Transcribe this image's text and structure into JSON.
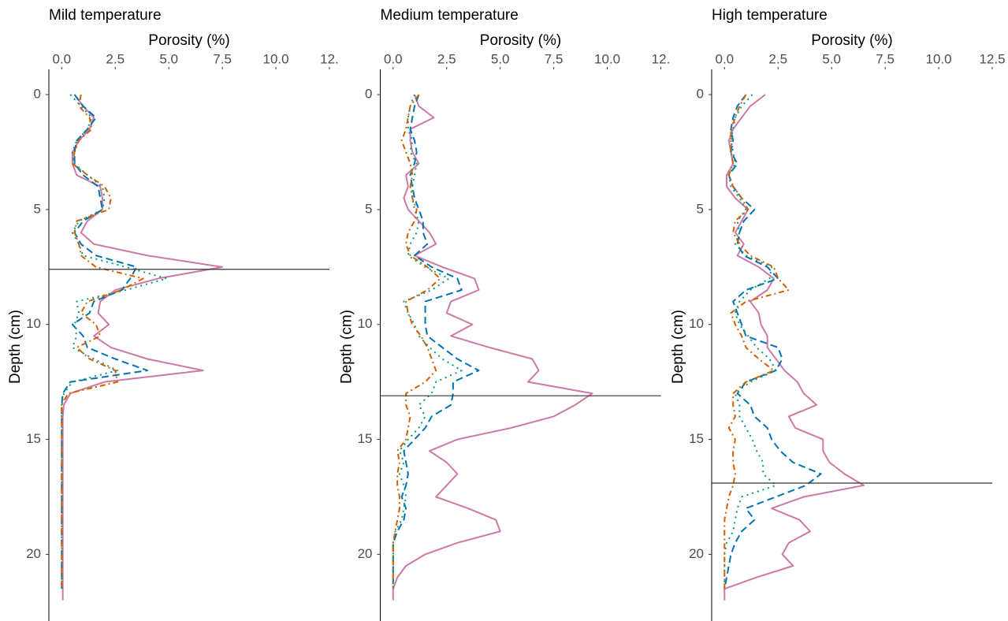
{
  "chart_data": [
    {
      "type": "line",
      "title": "Mild temperature",
      "xlabel": "Porosity (%)",
      "ylabel": "Depth (cm)",
      "x_axis_position": "top",
      "y_inverted": true,
      "xlim": [
        -0.6,
        12.5
      ],
      "xticks": [
        {
          "value": 0,
          "label": "0.0"
        },
        2.5,
        {
          "value": 5,
          "label": "5.0"
        },
        7.5,
        {
          "value": 10,
          "label": "10.0"
        },
        {
          "value": 12.5,
          "label": "12."
        }
      ],
      "ylim": [
        -1.1,
        22.9
      ],
      "yticks": [
        0,
        5,
        10,
        15,
        20
      ],
      "hline": 7.6,
      "depth": [
        0,
        0.5,
        1,
        1.5,
        2,
        2.5,
        3,
        3.5,
        4,
        4.5,
        5,
        5.5,
        6,
        6.5,
        7,
        7.5,
        8,
        8.5,
        9,
        9.5,
        10,
        10.5,
        11,
        11.5,
        12,
        12.5,
        13,
        13.5,
        14,
        14.5,
        15,
        15.5,
        16,
        16.5,
        17,
        17.5,
        18,
        18.5,
        19,
        19.5,
        20,
        20.5,
        21,
        21.5,
        22
      ],
      "series": [
        {
          "color": "#cc79a7",
          "linestyle": "solid",
          "values": [
            0.6,
            1.0,
            1.5,
            1.3,
            0.8,
            0.5,
            0.5,
            0.7,
            1.8,
            1.9,
            1.9,
            1.2,
            0.9,
            1.5,
            4.0,
            7.5,
            4.5,
            2.5,
            1.8,
            1.7,
            2.2,
            1.5,
            2.3,
            4.0,
            6.6,
            2.0,
            0.4,
            0.1,
            0.05,
            0.05,
            0.05,
            0.05,
            0.05,
            0.05,
            0.05,
            0.05,
            0.05,
            0.05,
            0.05,
            0.05,
            0.05,
            0.05,
            0.05,
            0.05,
            0.05
          ]
        },
        {
          "color": "#0072b2",
          "linestyle": "dashed",
          "values": [
            0.6,
            1.0,
            1.6,
            1.2,
            0.7,
            0.6,
            0.6,
            1.0,
            1.7,
            1.8,
            1.9,
            1.0,
            0.6,
            0.9,
            1.6,
            3.5,
            3.2,
            2.8,
            1.5,
            1.3,
            0.5,
            1.0,
            1.2,
            2.5,
            4.0,
            0.4,
            0.05,
            0,
            0,
            0,
            0,
            0,
            0,
            0,
            0,
            0,
            0,
            0,
            0,
            0,
            0,
            0,
            0,
            0,
            null
          ]
        },
        {
          "color": "#009e73",
          "linestyle": "dotted",
          "values": [
            0.4,
            0.9,
            1.4,
            1.2,
            0.7,
            0.5,
            0.6,
            1.2,
            1.9,
            2.0,
            1.9,
            0.8,
            0.5,
            0.8,
            1.0,
            3.0,
            4.9,
            3.0,
            0.7,
            0.8,
            0.6,
            0.7,
            0.5,
            1.5,
            2.6,
            0.5,
            0.1,
            0,
            0,
            0,
            0,
            0,
            0,
            0,
            0,
            0,
            0,
            0,
            0,
            0,
            0,
            0,
            0,
            0,
            null
          ]
        },
        {
          "color": "#d55e00",
          "linestyle": "dashdot",
          "values": [
            0.9,
            0.8,
            1.3,
            1.4,
            0.8,
            0.6,
            0.5,
            1.2,
            2.0,
            2.3,
            2.2,
            0.7,
            0.6,
            0.8,
            0.9,
            1.6,
            3.8,
            2.8,
            1.2,
            0.9,
            1.6,
            1.8,
            0.7,
            1.3,
            2.5,
            2.6,
            0.3,
            0,
            0,
            0,
            0,
            0,
            0,
            0,
            0,
            0,
            0,
            0,
            0,
            0,
            0,
            0,
            0,
            0,
            null
          ]
        }
      ]
    },
    {
      "type": "line",
      "title": "Medium temperature",
      "xlabel": "Porosity (%)",
      "ylabel": "Depth (cm)",
      "x_axis_position": "top",
      "y_inverted": true,
      "xlim": [
        -0.6,
        12.5
      ],
      "xticks": [
        {
          "value": 0,
          "label": "0.0"
        },
        2.5,
        {
          "value": 5,
          "label": "5.0"
        },
        7.5,
        {
          "value": 10,
          "label": "10.0"
        },
        {
          "value": 12.5,
          "label": "12."
        }
      ],
      "ylim": [
        -1.1,
        22.9
      ],
      "yticks": [
        0,
        5,
        10,
        15,
        20
      ],
      "hline": 13.1,
      "depth": [
        0,
        0.5,
        1,
        1.5,
        2,
        2.5,
        3,
        3.5,
        4,
        4.5,
        5,
        5.5,
        6,
        6.5,
        7,
        7.5,
        8,
        8.5,
        9,
        9.5,
        10,
        10.5,
        11,
        11.5,
        12,
        12.5,
        13,
        13.5,
        14,
        14.5,
        15,
        15.5,
        16,
        16.5,
        17,
        17.5,
        18,
        18.5,
        19,
        19.5,
        20,
        20.5,
        21,
        21.5,
        22
      ],
      "series": [
        {
          "color": "#cc79a7",
          "linestyle": "solid",
          "values": [
            1.0,
            1.2,
            1.9,
            0.8,
            0.8,
            0.9,
            1.2,
            0.6,
            0.7,
            0.5,
            0.7,
            1.2,
            1.7,
            2.0,
            1.0,
            2.3,
            3.8,
            4.0,
            2.7,
            2.5,
            3.7,
            2.7,
            4.5,
            6.5,
            6.8,
            6.3,
            9.3,
            8.5,
            7.5,
            5.5,
            3.0,
            1.7,
            2.5,
            3.0,
            2.5,
            2.0,
            3.5,
            4.8,
            5.0,
            3.0,
            1.5,
            0.6,
            0.2,
            0.0,
            0.0
          ]
        },
        {
          "color": "#0072b2",
          "linestyle": "dashed",
          "values": [
            1.2,
            1.0,
            0.9,
            0.8,
            1.0,
            1.1,
            1.0,
            0.8,
            0.9,
            1.0,
            1.2,
            1.4,
            1.4,
            1.6,
            1.0,
            1.8,
            3.0,
            3.2,
            1.5,
            1.5,
            1.5,
            1.6,
            2.3,
            3.0,
            4.0,
            2.8,
            2.8,
            2.7,
            1.8,
            1.5,
            1.0,
            0.5,
            0.6,
            0.7,
            0.6,
            0.4,
            0.6,
            0.5,
            0.2,
            0,
            0,
            0,
            0,
            0,
            null
          ]
        },
        {
          "color": "#009e73",
          "linestyle": "dotted",
          "values": [
            1.0,
            0.8,
            0.7,
            0.7,
            0.9,
            0.8,
            1.1,
            1.0,
            0.9,
            0.9,
            1.0,
            1.2,
            1.1,
            0.8,
            0.7,
            1.5,
            2.6,
            1.8,
            0.5,
            0.7,
            1.0,
            1.2,
            1.7,
            2.3,
            3.2,
            2.0,
            1.8,
            1.2,
            1.5,
            1.2,
            0.7,
            0.3,
            0.5,
            0.3,
            0.5,
            0.6,
            0.5,
            0.4,
            0.1,
            0,
            0,
            0,
            0,
            0,
            null
          ]
        },
        {
          "color": "#d55e00",
          "linestyle": "dashdot",
          "values": [
            1.2,
            0.8,
            0.7,
            0.6,
            0.4,
            0.6,
            0.8,
            0.9,
            0.8,
            0.9,
            1.1,
            1.0,
            0.7,
            0.6,
            0.8,
            1.6,
            2.2,
            1.6,
            0.6,
            0.7,
            0.9,
            1.3,
            1.6,
            1.8,
            2.0,
            1.5,
            0.6,
            0.6,
            0.8,
            0.7,
            0.6,
            0.2,
            0.3,
            0.2,
            0.2,
            0.3,
            0.3,
            0.2,
            0.1,
            0,
            0,
            0,
            0,
            0,
            null
          ]
        }
      ]
    },
    {
      "type": "line",
      "title": "High temperature",
      "xlabel": "Porosity (%)",
      "ylabel": "Depth (cm)",
      "x_axis_position": "top",
      "y_inverted": true,
      "xlim": [
        -0.6,
        12.5
      ],
      "xticks": [
        {
          "value": 0,
          "label": "0.0"
        },
        2.5,
        {
          "value": 5,
          "label": "5.0"
        },
        7.5,
        {
          "value": 10,
          "label": "10.0"
        },
        12.5
      ],
      "ylim": [
        -1.1,
        22.9
      ],
      "yticks": [
        0,
        5,
        10,
        15,
        20
      ],
      "hline": 16.9,
      "depth": [
        0,
        0.5,
        1,
        1.5,
        2,
        2.5,
        3,
        3.5,
        4,
        4.5,
        5,
        5.5,
        6,
        6.5,
        7,
        7.5,
        8,
        8.5,
        9,
        9.5,
        10,
        10.5,
        11,
        11.5,
        12,
        12.5,
        13,
        13.5,
        14,
        14.5,
        15,
        15.5,
        16,
        16.5,
        17,
        17.5,
        18,
        18.5,
        19,
        19.5,
        20,
        20.5,
        21,
        21.5,
        22
      ],
      "series": [
        {
          "color": "#cc79a7",
          "linestyle": "solid",
          "values": [
            1.9,
            1.2,
            0.8,
            0.4,
            0.2,
            0.3,
            0.4,
            0.1,
            0.1,
            0.5,
            1.1,
            0.8,
            0.5,
            0.9,
            0.6,
            1.6,
            2.3,
            2.0,
            1.2,
            1.6,
            1.7,
            2.0,
            2.0,
            2.4,
            2.8,
            3.4,
            3.7,
            4.3,
            3.0,
            3.3,
            4.6,
            4.6,
            4.9,
            5.6,
            6.5,
            3.7,
            2.2,
            3.5,
            4.0,
            3.0,
            2.7,
            3.2,
            1.5,
            0.0,
            0.0
          ]
        },
        {
          "color": "#0072b2",
          "linestyle": "dashed",
          "values": [
            1.0,
            0.6,
            0.4,
            0.3,
            0.4,
            0.3,
            0.6,
            0.2,
            0.4,
            0.8,
            1.4,
            0.9,
            0.7,
            0.6,
            0.9,
            2.0,
            2.5,
            1.0,
            0.4,
            0.6,
            0.8,
            1.0,
            2.5,
            2.7,
            2.4,
            1.0,
            0.6,
            1.2,
            1.4,
            2.0,
            2.2,
            2.6,
            3.2,
            4.5,
            3.8,
            2.4,
            1.0,
            1.4,
            0.8,
            0.5,
            0.3,
            0.2,
            0.1,
            0,
            null
          ]
        },
        {
          "color": "#009e73",
          "linestyle": "dotted",
          "values": [
            1.3,
            0.8,
            0.5,
            0.4,
            0.3,
            0.4,
            0.5,
            0.2,
            0.3,
            0.7,
            1.0,
            0.6,
            0.7,
            0.5,
            1.0,
            2.2,
            2.1,
            1.2,
            0.7,
            0.5,
            0.7,
            1.1,
            1.5,
            2.1,
            2.4,
            1.2,
            0.5,
            0.7,
            0.7,
            1.0,
            1.3,
            1.5,
            1.8,
            1.8,
            2.4,
            0.8,
            0.6,
            0.5,
            0.4,
            0.1,
            0,
            0,
            0,
            0,
            null
          ]
        },
        {
          "color": "#d55e00",
          "linestyle": "dashdot",
          "values": [
            1.0,
            0.7,
            0.5,
            0.3,
            0.3,
            0.3,
            0.4,
            0.2,
            0.4,
            0.8,
            1.1,
            0.5,
            0.4,
            0.7,
            1.2,
            2.3,
            2.5,
            3.0,
            1.0,
            0.3,
            0.5,
            0.8,
            1.0,
            1.6,
            2.3,
            1.0,
            0.4,
            0.4,
            0.5,
            0.2,
            0.5,
            0.4,
            0.4,
            0.5,
            0.4,
            0.2,
            0.1,
            0,
            0,
            0,
            0,
            0,
            0,
            0,
            null
          ]
        }
      ]
    }
  ]
}
